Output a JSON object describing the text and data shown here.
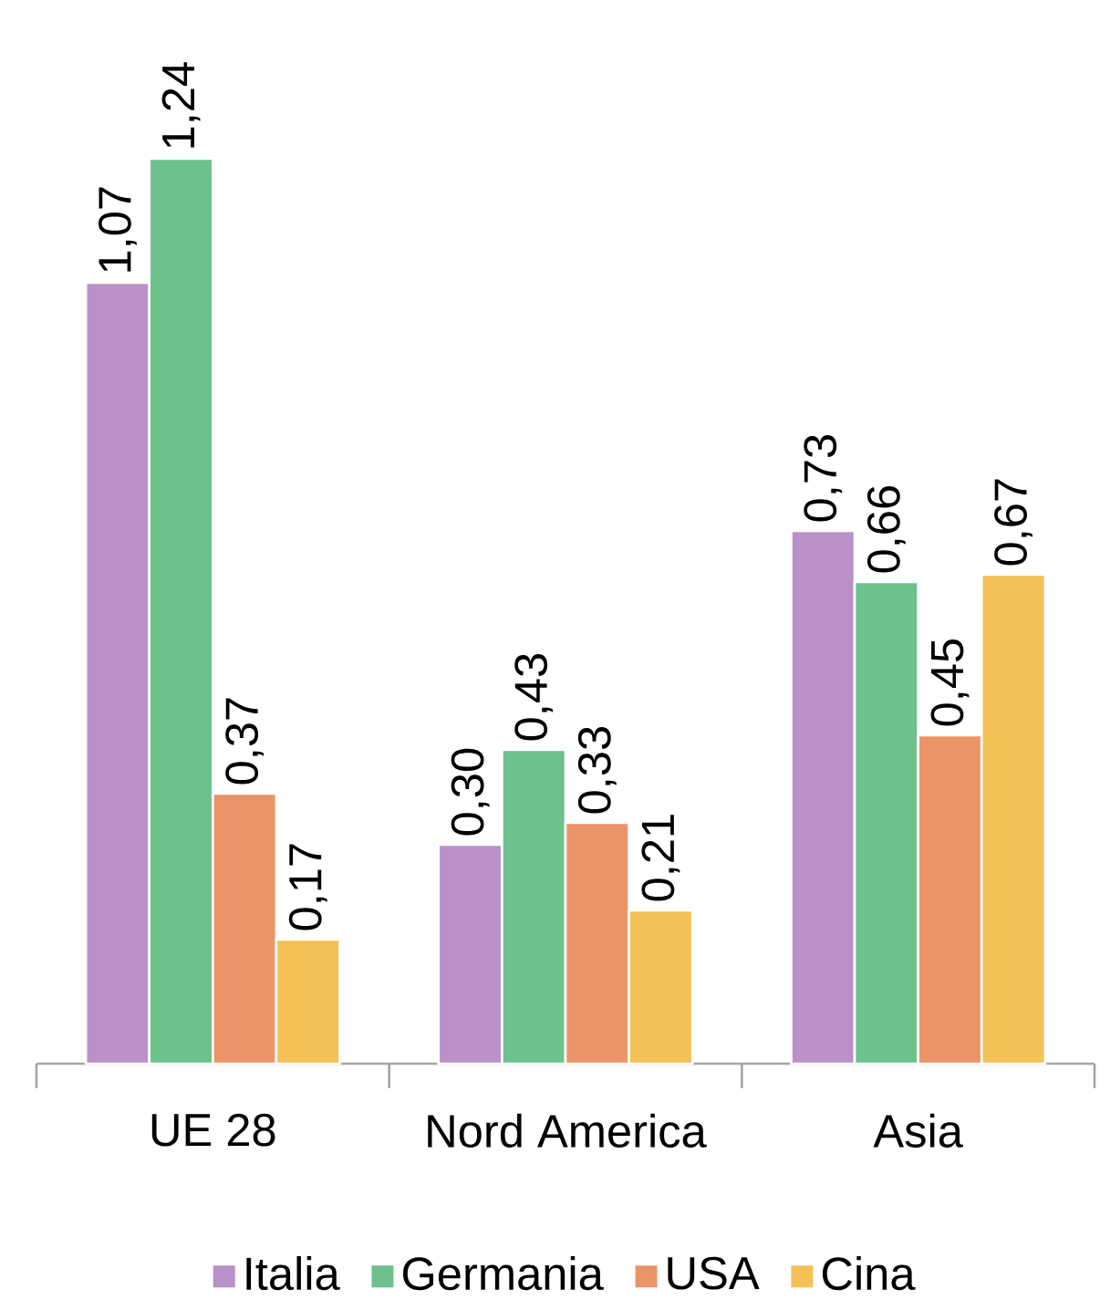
{
  "chart_data": {
    "type": "bar",
    "categories": [
      "UE 28",
      "Nord America",
      "Asia"
    ],
    "legend": "bottom",
    "series": [
      {
        "name": "Italia",
        "color": "#b990c9",
        "values": [
          1.07,
          0.3,
          0.73
        ],
        "value_labels": [
          "1,07",
          "0,30",
          "0,73"
        ]
      },
      {
        "name": "Germania",
        "color": "#6cc18c",
        "values": [
          1.24,
          0.43,
          0.66
        ],
        "value_labels": [
          "1,24",
          "0,43",
          "0,66"
        ]
      },
      {
        "name": "USA",
        "color": "#eb9468",
        "values": [
          0.37,
          0.33,
          0.45
        ],
        "value_labels": [
          "0,37",
          "0,33",
          "0,45"
        ]
      },
      {
        "name": "Cina",
        "color": "#f3c155",
        "values": [
          0.17,
          0.21,
          0.67
        ],
        "value_labels": [
          "0,17",
          "0,21",
          "0,67"
        ]
      }
    ]
  }
}
